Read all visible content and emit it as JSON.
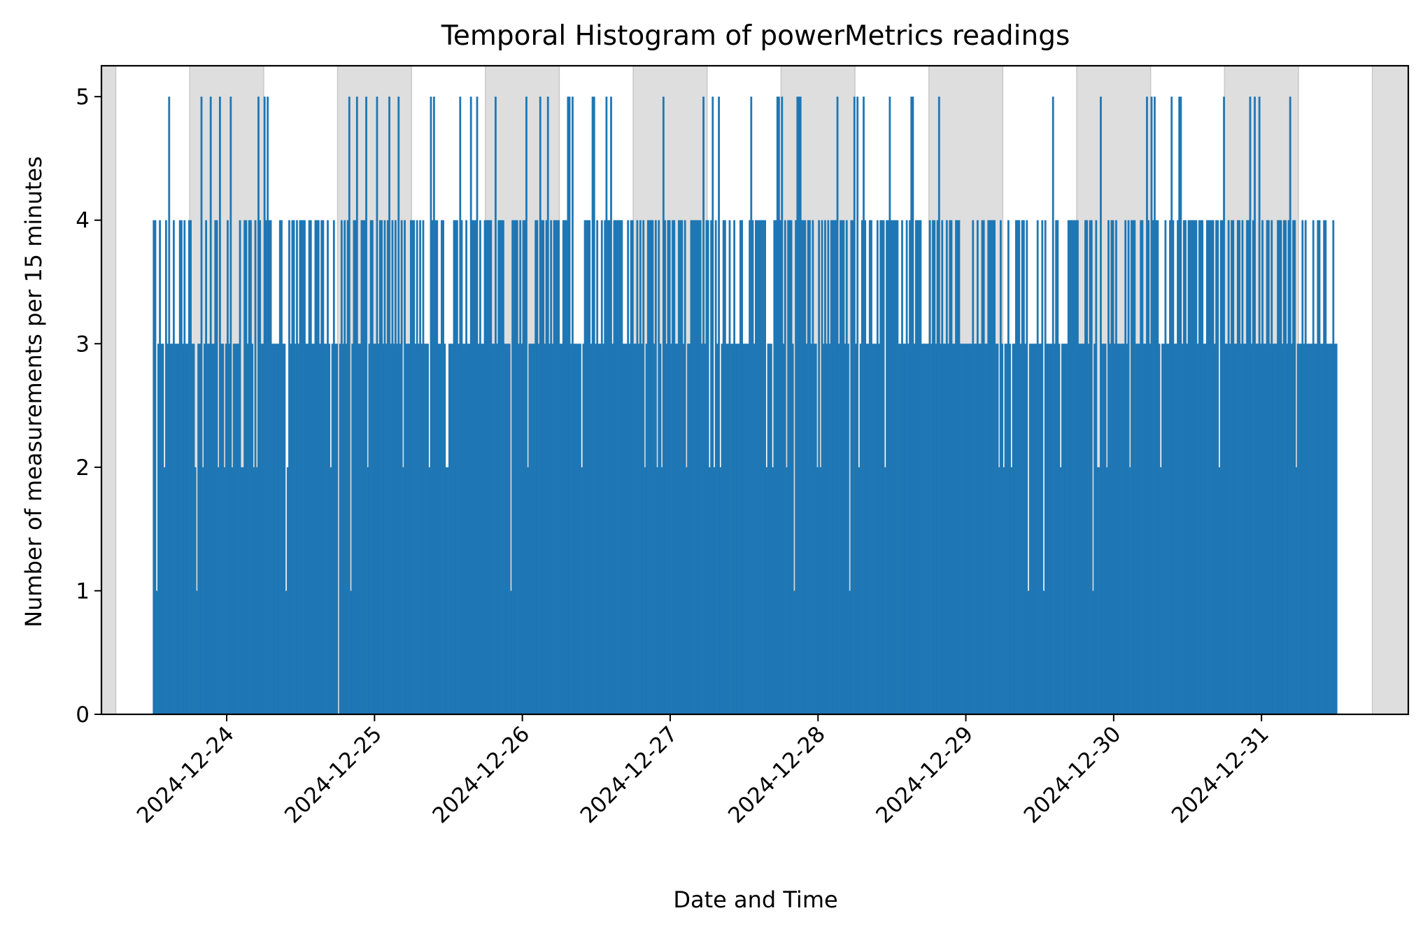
{
  "chart_data": {
    "type": "bar",
    "title": "Temporal Histogram of powerMetrics readings",
    "xlabel": "Date and Time",
    "ylabel": "Number of measurements per 15 minutes",
    "bin_minutes": 15,
    "x_start": "2024-12-23T12:00",
    "x_end": "2024-12-31T12:15",
    "xlim": [
      "2024-12-23T03:40",
      "2024-12-31T23:50"
    ],
    "ylim": [
      0,
      5.25
    ],
    "yticks": [
      0,
      1,
      2,
      3,
      4,
      5
    ],
    "xticks": [
      "2024-12-24",
      "2024-12-25",
      "2024-12-26",
      "2024-12-27",
      "2024-12-28",
      "2024-12-29",
      "2024-12-30",
      "2024-12-31"
    ],
    "night_bands": [
      [
        "2024-12-23T03:40",
        "2024-12-23T06:00"
      ],
      [
        "2024-12-23T18:00",
        "2024-12-24T06:00"
      ],
      [
        "2024-12-24T18:00",
        "2024-12-25T06:00"
      ],
      [
        "2024-12-25T18:00",
        "2024-12-26T06:00"
      ],
      [
        "2024-12-26T18:00",
        "2024-12-27T06:00"
      ],
      [
        "2024-12-27T18:00",
        "2024-12-28T06:00"
      ],
      [
        "2024-12-28T18:00",
        "2024-12-29T06:00"
      ],
      [
        "2024-12-29T18:00",
        "2024-12-30T06:00"
      ],
      [
        "2024-12-30T18:00",
        "2024-12-31T06:00"
      ],
      [
        "2024-12-31T18:00",
        "2024-12-31T23:50"
      ]
    ],
    "values_profile": "Per-bin counts fluctuate mostly between 3 and 4 with frequent spikes to 5 and occasional dips to 2, 1 and 0.",
    "notable_bins": {
      "zero_count_near": "2024-12-24T18:00",
      "one_count_near": [
        "2024-12-23T12:30",
        "2024-12-23T19:00",
        "2024-12-24T09:30",
        "2024-12-24T20:00",
        "2024-12-25T22:00",
        "2024-12-27T20:00",
        "2024-12-28T05:00",
        "2024-12-29T10:00",
        "2024-12-29T12:30",
        "2024-12-29T20:30"
      ]
    },
    "bar_color": "#1f77b4",
    "band_color": "#dedede",
    "grid": false
  }
}
